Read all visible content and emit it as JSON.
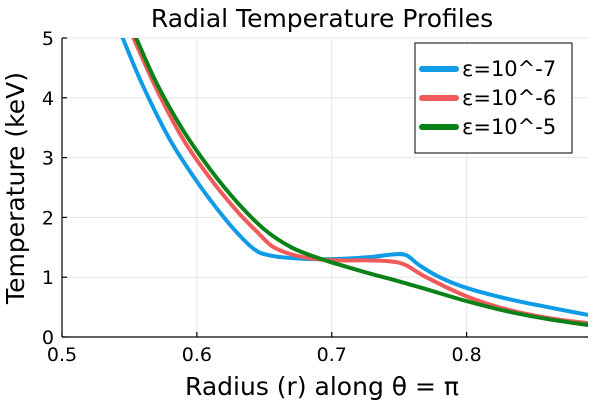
{
  "chart_data": {
    "type": "line",
    "title": "Radial Temperature Profiles",
    "xlabel": "Radius (r) along θ = π",
    "ylabel": "Temperature (keV)",
    "xlim": [
      0.5,
      0.89
    ],
    "ylim": [
      0,
      5
    ],
    "xticks": [
      0.5,
      0.6,
      0.7,
      0.8
    ],
    "xtick_labels": [
      "0.5",
      "0.6",
      "0.7",
      "0.8"
    ],
    "yticks": [
      0,
      1,
      2,
      3,
      4,
      5
    ],
    "ytick_labels": [
      "0",
      "1",
      "2",
      "3",
      "4",
      "5"
    ],
    "grid": true,
    "legend_position": "top-right",
    "series": [
      {
        "name": "ε=10^-7",
        "color": "#0f9be6",
        "x": [
          0.545,
          0.56,
          0.58,
          0.6,
          0.62,
          0.635,
          0.645,
          0.655,
          0.67,
          0.69,
          0.71,
          0.73,
          0.745,
          0.755,
          0.765,
          0.78,
          0.8,
          0.83,
          0.86,
          0.89
        ],
        "y": [
          5.0,
          4.2,
          3.3,
          2.6,
          2.0,
          1.62,
          1.43,
          1.36,
          1.32,
          1.3,
          1.31,
          1.34,
          1.38,
          1.37,
          1.2,
          1.0,
          0.82,
          0.64,
          0.5,
          0.37
        ]
      },
      {
        "name": "ε=10^-6",
        "color": "#f05a5a",
        "x": [
          0.553,
          0.57,
          0.59,
          0.61,
          0.63,
          0.645,
          0.655,
          0.665,
          0.68,
          0.695,
          0.71,
          0.73,
          0.745,
          0.755,
          0.77,
          0.8,
          0.83,
          0.86,
          0.89
        ],
        "y": [
          5.0,
          4.15,
          3.3,
          2.65,
          2.1,
          1.75,
          1.53,
          1.42,
          1.33,
          1.29,
          1.28,
          1.28,
          1.26,
          1.2,
          1.0,
          0.68,
          0.46,
          0.32,
          0.23
        ]
      },
      {
        "name": "ε=10^-5",
        "color": "#0a8217",
        "x": [
          0.555,
          0.57,
          0.59,
          0.61,
          0.63,
          0.65,
          0.67,
          0.69,
          0.71,
          0.73,
          0.75,
          0.77,
          0.8,
          0.83,
          0.86,
          0.89
        ],
        "y": [
          5.0,
          4.25,
          3.45,
          2.8,
          2.25,
          1.8,
          1.5,
          1.32,
          1.18,
          1.05,
          0.93,
          0.8,
          0.6,
          0.43,
          0.3,
          0.2
        ]
      }
    ]
  }
}
